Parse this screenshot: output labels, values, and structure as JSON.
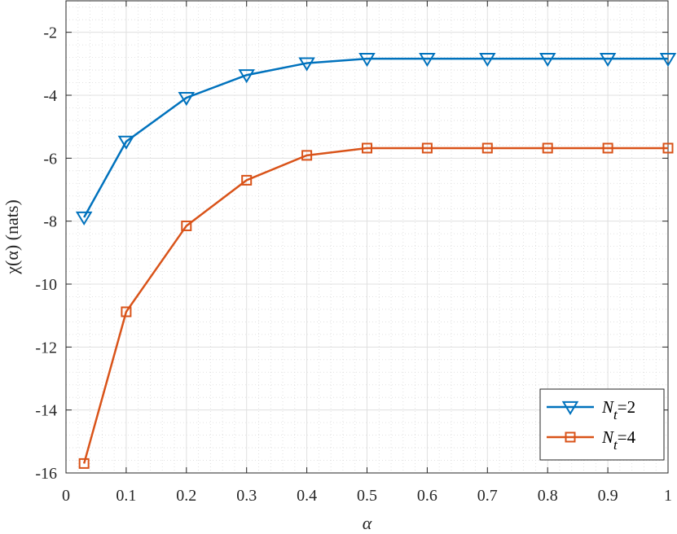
{
  "chart_data": {
    "type": "line",
    "title": "",
    "xlabel": "α",
    "ylabel": "χ(α) (nats)",
    "xlim": [
      0,
      1
    ],
    "ylim": [
      -16,
      -1
    ],
    "x_ticks": [
      0,
      0.1,
      0.2,
      0.3,
      0.4,
      0.5,
      0.6,
      0.7,
      0.8,
      0.9,
      1
    ],
    "x_tick_labels": [
      "0",
      "0.1",
      "0.2",
      "0.3",
      "0.4",
      "0.5",
      "0.6",
      "0.7",
      "0.8",
      "0.9",
      "1"
    ],
    "y_ticks": [
      -16,
      -14,
      -12,
      -10,
      -8,
      -6,
      -4,
      -2
    ],
    "y_tick_labels": [
      "-16",
      "-14",
      "-12",
      "-10",
      "-8",
      "-6",
      "-4",
      "-2"
    ],
    "grid": true,
    "minor_grid": true,
    "legend_position": "bottom-right",
    "x": [
      0.03,
      0.1,
      0.2,
      0.3,
      0.4,
      0.5,
      0.6,
      0.7,
      0.8,
      0.9,
      1.0
    ],
    "series": [
      {
        "name": "N_t=2",
        "legend_main": "N",
        "legend_sub": "t",
        "legend_rest": "=2",
        "color": "#0072BD",
        "marker": "triangle-down",
        "values": [
          -7.88,
          -5.47,
          -4.08,
          -3.36,
          -2.98,
          -2.84,
          -2.84,
          -2.84,
          -2.84,
          -2.84,
          -2.84
        ]
      },
      {
        "name": "N_t=4",
        "legend_main": "N",
        "legend_sub": "t",
        "legend_rest": "=4",
        "color": "#D95319",
        "marker": "square",
        "values": [
          -15.7,
          -10.88,
          -8.15,
          -6.7,
          -5.91,
          -5.68,
          -5.68,
          -5.68,
          -5.68,
          -5.68,
          -5.68
        ]
      }
    ]
  }
}
